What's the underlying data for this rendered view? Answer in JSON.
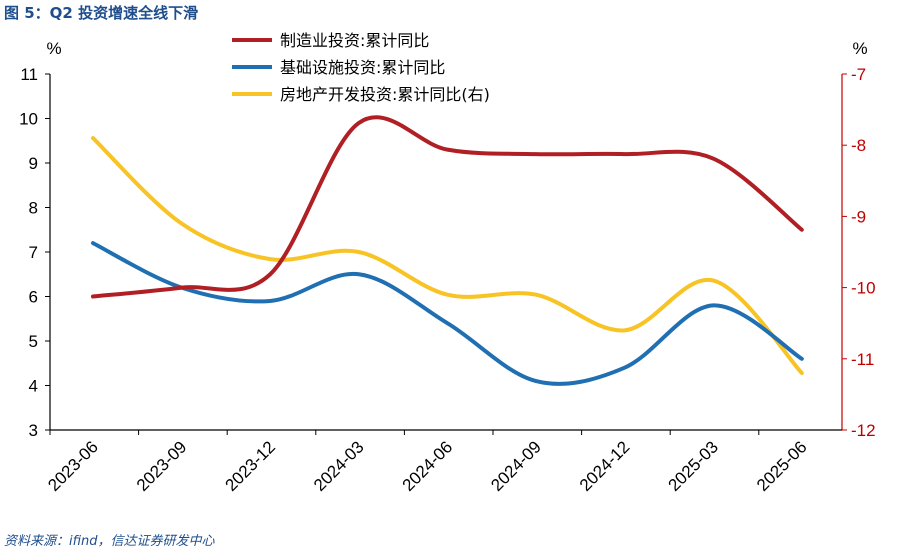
{
  "figure": {
    "title": "图 5：Q2 投资增速全线下滑",
    "source": "资料来源：ifind，信达证券研发中心"
  },
  "chart_data": {
    "type": "line",
    "x": [
      "2023-06",
      "2023-09",
      "2023-12",
      "2024-03",
      "2024-06",
      "2024-09",
      "2024-12",
      "2025-03",
      "2025-06"
    ],
    "left_axis": {
      "unit": "%",
      "ylim": [
        3,
        11
      ],
      "ticks": [
        "3",
        "4",
        "5",
        "6",
        "7",
        "8",
        "9",
        "10",
        "11"
      ]
    },
    "right_axis": {
      "unit": "%",
      "ylim": [
        -12,
        -7
      ],
      "ticks": [
        "-12",
        "-11",
        "-10",
        "-9",
        "-8",
        "-7"
      ]
    },
    "grid": false,
    "legend_position": "top-center",
    "series": [
      {
        "name": "制造业投资:累计同比",
        "axis": "left",
        "color": "#b01f24",
        "values": [
          6.0,
          6.2,
          6.5,
          9.9,
          9.3,
          9.2,
          9.2,
          9.1,
          7.5
        ]
      },
      {
        "name": "基础设施投资:累计同比",
        "axis": "left",
        "color": "#1f6fb2",
        "values": [
          7.2,
          6.2,
          5.9,
          6.5,
          5.4,
          4.1,
          4.4,
          5.8,
          4.6
        ]
      },
      {
        "name": "房地产开发投资:累计同比(右)",
        "axis": "right",
        "color": "#f7c325",
        "values": [
          -7.9,
          -9.1,
          -9.6,
          -9.5,
          -10.1,
          -10.1,
          -10.6,
          -9.9,
          -11.2
        ]
      }
    ]
  }
}
